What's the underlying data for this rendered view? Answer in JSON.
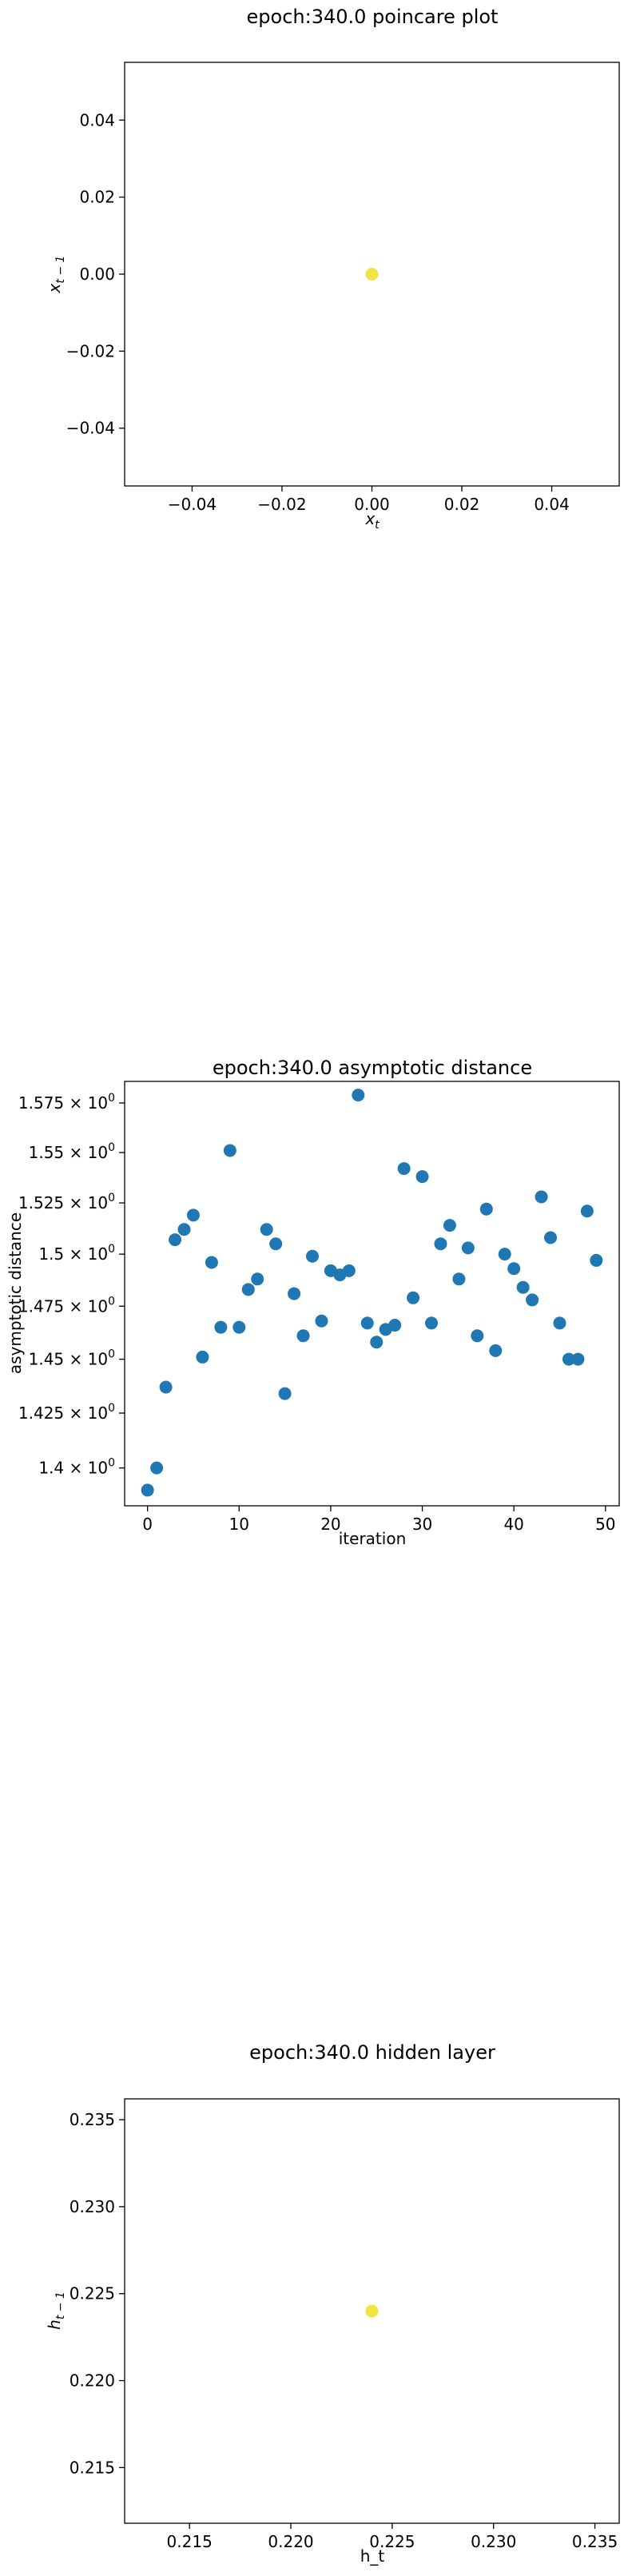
{
  "chart_data": [
    {
      "type": "scatter",
      "title": "epoch:340.0 poincare plot",
      "xlabel_base": "x",
      "xlabel_sub": "t",
      "ylabel_base": "x",
      "ylabel_sub": "t − 1",
      "xlim": [
        -0.055,
        0.055
      ],
      "ylim": [
        -0.055,
        0.055
      ],
      "xticks": [
        -0.04,
        -0.02,
        0.0,
        0.02,
        0.04
      ],
      "xtick_labels": [
        "−0.04",
        "−0.02",
        "0.00",
        "0.02",
        "0.04"
      ],
      "yticks": [
        -0.04,
        -0.02,
        0.0,
        0.02,
        0.04
      ],
      "ytick_labels": [
        "−0.04",
        "−0.02",
        "0.00",
        "0.02",
        "0.04"
      ],
      "point_color": "#f0e442",
      "points": [
        {
          "x": 0.0,
          "y": 0.0
        }
      ]
    },
    {
      "type": "scatter",
      "title": "epoch:340.0 asymptotic distance",
      "xlabel": "iteration",
      "ylabel": "asymptotic distance",
      "yscale": "log",
      "xlim": [
        -2.5,
        51.5
      ],
      "ylim": [
        1.383,
        1.586
      ],
      "xticks": [
        0,
        10,
        20,
        30,
        40,
        50
      ],
      "xtick_labels": [
        "0",
        "10",
        "20",
        "30",
        "40",
        "50"
      ],
      "yticks": [
        1.4,
        1.425,
        1.45,
        1.475,
        1.5,
        1.525,
        1.55,
        1.575
      ],
      "ytick_mantissas": [
        "1.4",
        "1.425",
        "1.45",
        "1.475",
        "1.5",
        "1.525",
        "1.55",
        "1.575"
      ],
      "ytick_suffix": "× 10",
      "ytick_exponent": "0",
      "point_color": "#1f77b4",
      "x": [
        0,
        1,
        2,
        3,
        4,
        5,
        6,
        7,
        8,
        9,
        10,
        11,
        12,
        13,
        14,
        15,
        16,
        17,
        18,
        19,
        20,
        21,
        22,
        23,
        24,
        25,
        26,
        27,
        28,
        29,
        30,
        31,
        32,
        33,
        34,
        35,
        36,
        37,
        38,
        39,
        40,
        41,
        42,
        43,
        44,
        45,
        46,
        47,
        48,
        49
      ],
      "y": [
        1.39,
        1.4,
        1.437,
        1.507,
        1.512,
        1.519,
        1.451,
        1.496,
        1.465,
        1.551,
        1.465,
        1.483,
        1.488,
        1.512,
        1.505,
        1.434,
        1.481,
        1.461,
        1.499,
        1.468,
        1.492,
        1.49,
        1.492,
        1.579,
        1.467,
        1.458,
        1.464,
        1.466,
        1.542,
        1.479,
        1.538,
        1.467,
        1.505,
        1.514,
        1.488,
        1.503,
        1.461,
        1.522,
        1.454,
        1.5,
        1.493,
        1.484,
        1.478,
        1.528,
        1.508,
        1.467,
        1.45,
        1.45,
        1.521,
        1.497
      ]
    },
    {
      "type": "scatter",
      "title": "epoch:340.0 hidden layer",
      "xlabel": "h_t",
      "ylabel_base": "h",
      "ylabel_sub": "t − 1",
      "xlim": [
        0.2118,
        0.2362
      ],
      "ylim": [
        0.2118,
        0.2362
      ],
      "xticks": [
        0.215,
        0.22,
        0.225,
        0.23,
        0.235
      ],
      "xtick_labels": [
        "0.215",
        "0.220",
        "0.225",
        "0.230",
        "0.235"
      ],
      "yticks": [
        0.215,
        0.22,
        0.225,
        0.23,
        0.235
      ],
      "ytick_labels": [
        "0.215",
        "0.220",
        "0.225",
        "0.230",
        "0.235"
      ],
      "point_color": "#f0e442",
      "points": [
        {
          "x": 0.224,
          "y": 0.224
        }
      ]
    }
  ]
}
